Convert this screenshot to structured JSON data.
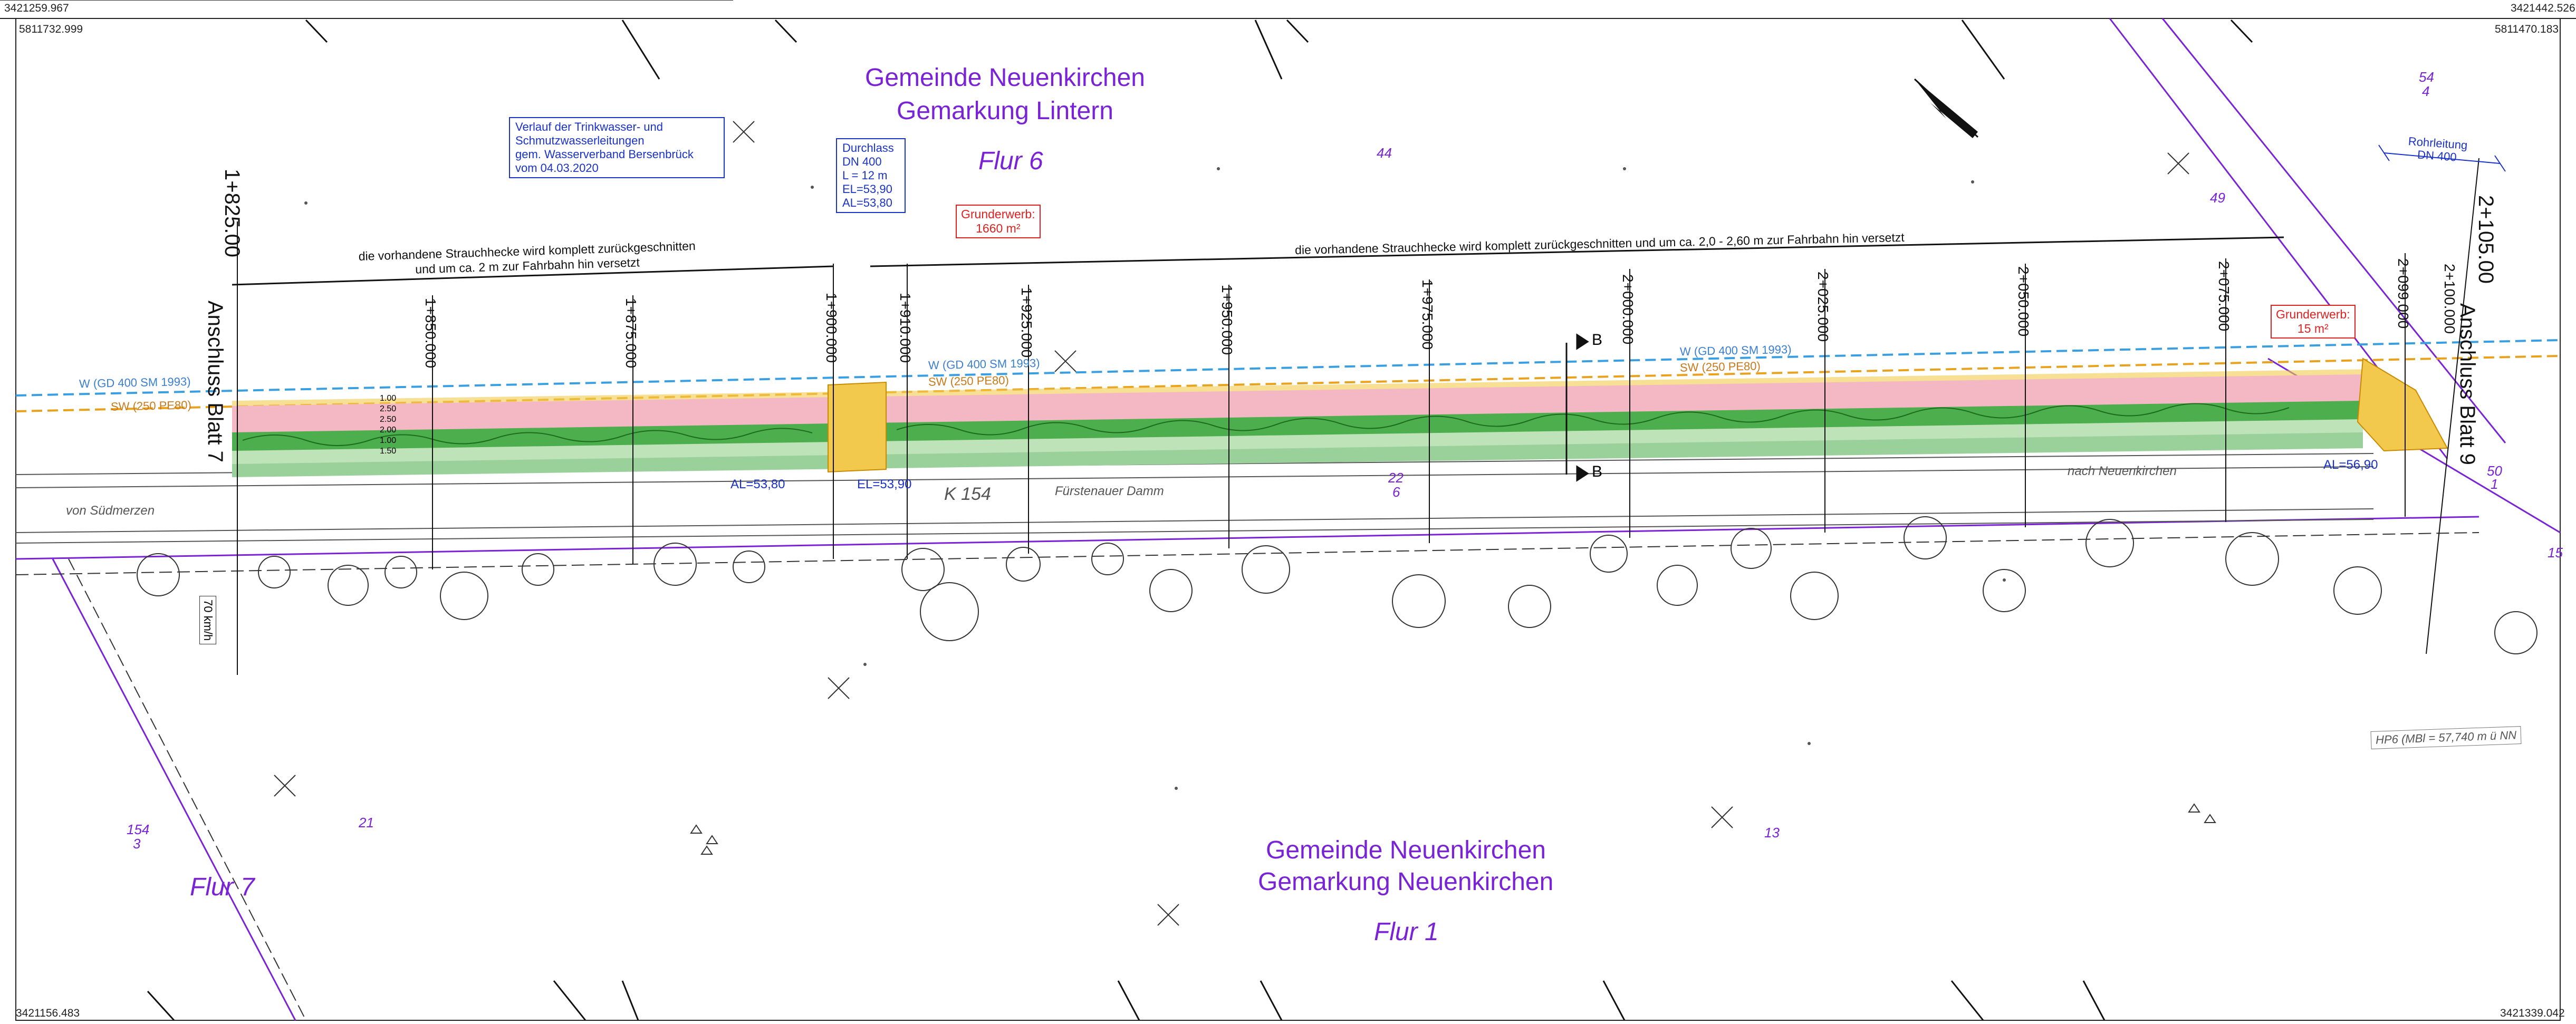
{
  "corner_coords": {
    "top_left": "3421259.967",
    "top_left_y": "5811732.999",
    "top_right": "3421442.526",
    "top_right_y": "5811470.183",
    "bottom_left": "3421156.483",
    "bottom_right": "3421339.042"
  },
  "north": {
    "municipality": "Gemeinde Neuenkirchen",
    "district": "Gemarkung Lintern",
    "flur": "Flur 6"
  },
  "south": {
    "municipality": "Gemeinde Neuenkirchen",
    "district": "Gemarkung Neuenkirchen",
    "flur": "Flur 1"
  },
  "flur7": "Flur 7",
  "pipeline_note": [
    "Verlauf der Trinkwasser- und",
    "Schmutzwasserleitungen",
    "gem. Wasserverband Bersenbrück",
    "vom 04.03.2020"
  ],
  "culvert": {
    "title": "Durchlass",
    "dn": "DN 400",
    "length": "L = 12 m",
    "el": "EL=53,90",
    "al": "AL=53,80"
  },
  "acquisition_1": {
    "title": "Grunderwerb:",
    "area": "1660 m²"
  },
  "acquisition_2": {
    "title": "Grunderwerb:",
    "area": "15 m²"
  },
  "hedge_note_left": [
    "die vorhandene Strauchhecke wird komplett zurückgeschnitten",
    "und um ca. 2 m zur Fahrbahn hin versetzt"
  ],
  "hedge_note_right": "die vorhandene Strauchhecke wird komplett zurückgeschnitten und um ca. 2,0 - 2,60 m zur Fahrbahn hin versetzt",
  "connections": {
    "left_station": "1+825.00",
    "left_sheet": "Anschluss Blatt 7",
    "right_station": "2+105.00",
    "right_sheet": "Anschluss Blatt 9"
  },
  "stations": [
    "1+850.000",
    "1+875.000",
    "1+900.000",
    "1+910.000",
    "1+925.000",
    "1+950.000",
    "1+975.000",
    "2+000.000",
    "2+025.000",
    "2+050.000",
    "2+075.000",
    "2+099.000",
    "2+100.000"
  ],
  "pipes": {
    "water_left": "W (GD 400 SM 1993)",
    "sewer_left": "SW (250 PE80)",
    "water_mid": "W (GD 400 SM 1993)",
    "sewer_mid": "SW (250 PE80)",
    "water_right": "W (GD 400 SM 1993)",
    "sewer_right": "SW (250 PE80)"
  },
  "road": {
    "name": "K 154",
    "street": "Fürstenauer Damm",
    "from": "von Südmerzen",
    "to": "nach Neuenkirchen"
  },
  "levels": {
    "al_left": "AL=53,80",
    "el_left": "EL=53,90",
    "al_right": "AL=56,90"
  },
  "section_marks": [
    "B",
    "B"
  ],
  "speed_sign": "70 km/h",
  "parcels": {
    "p44": "44",
    "p49": "49",
    "p22": "22",
    "p22b": "6",
    "p21": "21",
    "p13": "13",
    "p154": "154",
    "p154b": "3",
    "p54": "54",
    "p54b": "4",
    "p50": "50",
    "p50b": "1",
    "p15": "15"
  },
  "pipe_right_box": {
    "title": "Rohrleitung",
    "dn": "DN 400"
  },
  "hp_note": "HP6 (MBl = 57,740 m ü NN",
  "cross_section_values": [
    "1.00",
    "2.50",
    "2.50",
    "2.00",
    "1.00",
    "1.50"
  ],
  "colors": {
    "pink_strip": "#f4b8c4",
    "green_strip": "#4cae4c",
    "light_green": "#bfe3b8",
    "yellow": "#f2c94c",
    "orange": "#e8a21e",
    "purple": "#7a22d6",
    "water_line": "#3a9fe0"
  }
}
